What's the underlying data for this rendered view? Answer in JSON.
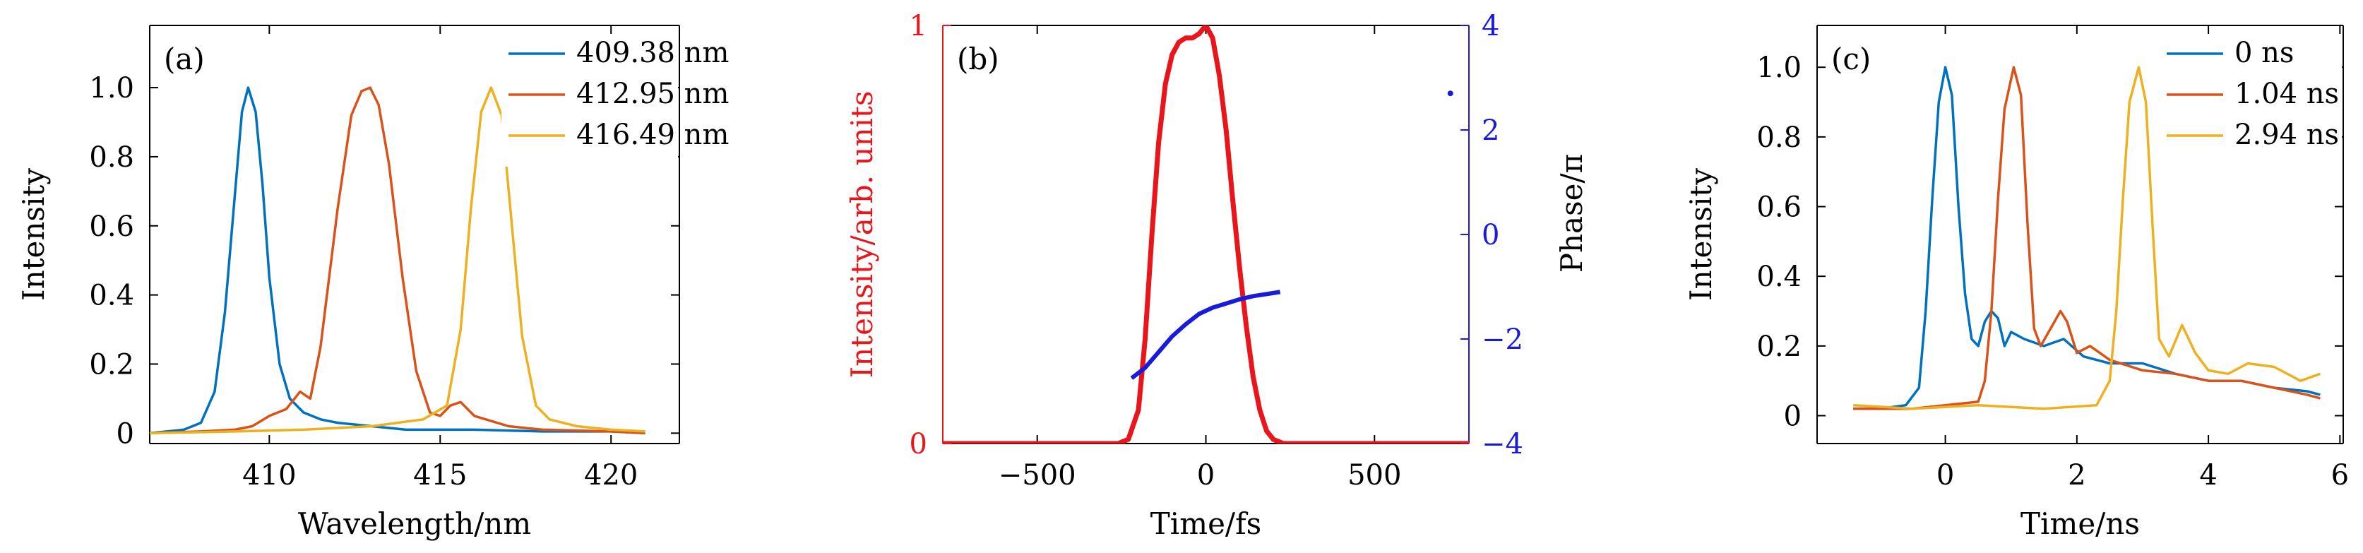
{
  "chart_data": [
    {
      "panel_label": "(a)",
      "type": "line",
      "xlabel": "Wavelength/nm",
      "ylabel": "Intensity",
      "xlim": [
        406.5,
        422
      ],
      "ylim": [
        -0.03,
        1.18
      ],
      "xticks": [
        410,
        415,
        420
      ],
      "xtick_labels": [
        "410",
        "415",
        "420"
      ],
      "yticks": [
        0,
        0.2,
        0.4,
        0.6,
        0.8,
        1.0
      ],
      "ytick_labels": [
        "0",
        "0.2",
        "0.4",
        "0.6",
        "0.8",
        "1.0"
      ],
      "legend_position": "top-right",
      "series": [
        {
          "name": "409.38 nm",
          "color": "#0072BD",
          "x": [
            406.5,
            407.0,
            407.5,
            408.0,
            408.4,
            408.7,
            409.0,
            409.2,
            409.38,
            409.6,
            409.8,
            410.0,
            410.3,
            410.6,
            411.0,
            411.5,
            412.0,
            413.0,
            414.0,
            416.0,
            418.0,
            420.0,
            421.0
          ],
          "values": [
            0.0,
            0.005,
            0.01,
            0.03,
            0.12,
            0.35,
            0.7,
            0.93,
            1.0,
            0.93,
            0.72,
            0.45,
            0.2,
            0.1,
            0.06,
            0.04,
            0.03,
            0.02,
            0.01,
            0.01,
            0.005,
            0.005,
            0.0
          ]
        },
        {
          "name": "412.95 nm",
          "color": "#D95319",
          "x": [
            406.5,
            408.0,
            409.0,
            409.5,
            410.0,
            410.5,
            410.9,
            411.2,
            411.5,
            412.0,
            412.4,
            412.7,
            412.95,
            413.2,
            413.5,
            413.9,
            414.3,
            414.7,
            415.0,
            415.3,
            415.6,
            416.0,
            417.0,
            418.0,
            420.0,
            421.0
          ],
          "values": [
            0.0,
            0.005,
            0.01,
            0.02,
            0.05,
            0.07,
            0.12,
            0.1,
            0.25,
            0.65,
            0.92,
            0.99,
            1.0,
            0.95,
            0.78,
            0.45,
            0.18,
            0.06,
            0.05,
            0.08,
            0.09,
            0.05,
            0.02,
            0.01,
            0.005,
            0.0
          ]
        },
        {
          "name": "416.49 nm",
          "color": "#EDB120",
          "x": [
            406.5,
            409.0,
            411.0,
            413.0,
            414.5,
            415.2,
            415.6,
            415.9,
            416.2,
            416.49,
            416.8,
            417.1,
            417.4,
            417.8,
            418.2,
            419.0,
            420.0,
            421.0
          ],
          "values": [
            0.0,
            0.005,
            0.01,
            0.02,
            0.04,
            0.08,
            0.3,
            0.65,
            0.93,
            1.0,
            0.92,
            0.6,
            0.28,
            0.08,
            0.04,
            0.02,
            0.01,
            0.005
          ]
        }
      ]
    },
    {
      "panel_label": "(b)",
      "type": "line",
      "xlabel": "Time/fs",
      "ylabel": "Intensity/arb. units",
      "ylabel_right": "Phase/π",
      "xlim": [
        -780,
        780
      ],
      "ylim": [
        0,
        1
      ],
      "ylim_right": [
        -4,
        4
      ],
      "xticks": [
        -500,
        0,
        500
      ],
      "xtick_labels": [
        "−500",
        "0",
        "500"
      ],
      "yticks": [
        0,
        1
      ],
      "ytick_labels": [
        "0",
        "1"
      ],
      "yticks_right": [
        -4,
        -2,
        0,
        2,
        4
      ],
      "ytick_labels_right": [
        "−4",
        "−2",
        "0",
        "2",
        "4"
      ],
      "series": [
        {
          "axis": "left",
          "color": "#E8161B",
          "x": [
            -780,
            -400,
            -260,
            -230,
            -200,
            -180,
            -160,
            -140,
            -120,
            -100,
            -80,
            -60,
            -40,
            -20,
            0,
            20,
            40,
            60,
            80,
            100,
            120,
            140,
            160,
            180,
            200,
            230,
            260,
            400,
            780
          ],
          "values": [
            0,
            0,
            0,
            0.01,
            0.08,
            0.25,
            0.5,
            0.72,
            0.86,
            0.93,
            0.96,
            0.97,
            0.97,
            0.98,
            1.0,
            0.97,
            0.88,
            0.75,
            0.58,
            0.42,
            0.28,
            0.16,
            0.08,
            0.03,
            0.01,
            0,
            0,
            0,
            0
          ]
        },
        {
          "axis": "right",
          "color": "#1A1AD9",
          "x": [
            -220,
            -180,
            -140,
            -100,
            -60,
            -20,
            20,
            60,
            100,
            140,
            180,
            220,
            725
          ],
          "values": [
            -2.75,
            -2.55,
            -2.25,
            -1.95,
            -1.72,
            -1.52,
            -1.4,
            -1.32,
            -1.24,
            -1.18,
            -1.14,
            -1.1,
            2.7
          ]
        }
      ]
    },
    {
      "panel_label": "(c)",
      "type": "line",
      "xlabel": "Time/ns",
      "ylabel": "Intensity",
      "xlim": [
        -1.95,
        6.05
      ],
      "ylim": [
        -0.08,
        1.12
      ],
      "xticks": [
        0,
        2,
        4,
        6
      ],
      "xtick_labels": [
        "0",
        "2",
        "4",
        "6"
      ],
      "yticks": [
        0,
        0.2,
        0.4,
        0.6,
        0.8,
        1.0
      ],
      "ytick_labels": [
        "0",
        "0.2",
        "0.4",
        "0.6",
        "0.8",
        "1.0"
      ],
      "legend_position": "top-right",
      "series": [
        {
          "name": "0 ns",
          "color": "#0072BD",
          "x": [
            -1.4,
            -1.0,
            -0.6,
            -0.4,
            -0.3,
            -0.2,
            -0.1,
            0.0,
            0.1,
            0.2,
            0.3,
            0.4,
            0.5,
            0.6,
            0.7,
            0.8,
            0.9,
            1.0,
            1.2,
            1.5,
            1.8,
            2.1,
            2.5,
            3.0,
            3.5,
            4.0,
            4.5,
            5.0,
            5.5,
            5.7
          ],
          "values": [
            0.02,
            0.02,
            0.03,
            0.08,
            0.3,
            0.62,
            0.9,
            1.0,
            0.92,
            0.6,
            0.35,
            0.22,
            0.2,
            0.27,
            0.3,
            0.28,
            0.2,
            0.24,
            0.22,
            0.2,
            0.22,
            0.17,
            0.15,
            0.15,
            0.12,
            0.1,
            0.1,
            0.08,
            0.07,
            0.06
          ]
        },
        {
          "name": "1.04 ns",
          "color": "#D95319",
          "x": [
            -1.4,
            -0.5,
            0.0,
            0.5,
            0.6,
            0.7,
            0.8,
            0.9,
            1.04,
            1.15,
            1.25,
            1.35,
            1.45,
            1.6,
            1.75,
            1.85,
            2.0,
            2.2,
            2.5,
            3.0,
            3.5,
            4.0,
            4.5,
            5.0,
            5.5,
            5.7
          ],
          "values": [
            0.02,
            0.02,
            0.03,
            0.04,
            0.1,
            0.3,
            0.62,
            0.88,
            1.0,
            0.92,
            0.55,
            0.25,
            0.2,
            0.25,
            0.3,
            0.27,
            0.18,
            0.2,
            0.16,
            0.13,
            0.12,
            0.1,
            0.1,
            0.08,
            0.06,
            0.05
          ]
        },
        {
          "name": "2.94 ns",
          "color": "#EDB120",
          "x": [
            -1.4,
            -0.5,
            0.5,
            1.5,
            2.3,
            2.5,
            2.6,
            2.7,
            2.8,
            2.94,
            3.05,
            3.15,
            3.25,
            3.4,
            3.6,
            3.8,
            4.0,
            4.3,
            4.6,
            5.0,
            5.4,
            5.7
          ],
          "values": [
            0.03,
            0.02,
            0.03,
            0.02,
            0.03,
            0.1,
            0.3,
            0.62,
            0.9,
            1.0,
            0.9,
            0.55,
            0.22,
            0.17,
            0.26,
            0.18,
            0.13,
            0.12,
            0.15,
            0.14,
            0.1,
            0.12
          ]
        }
      ]
    }
  ]
}
